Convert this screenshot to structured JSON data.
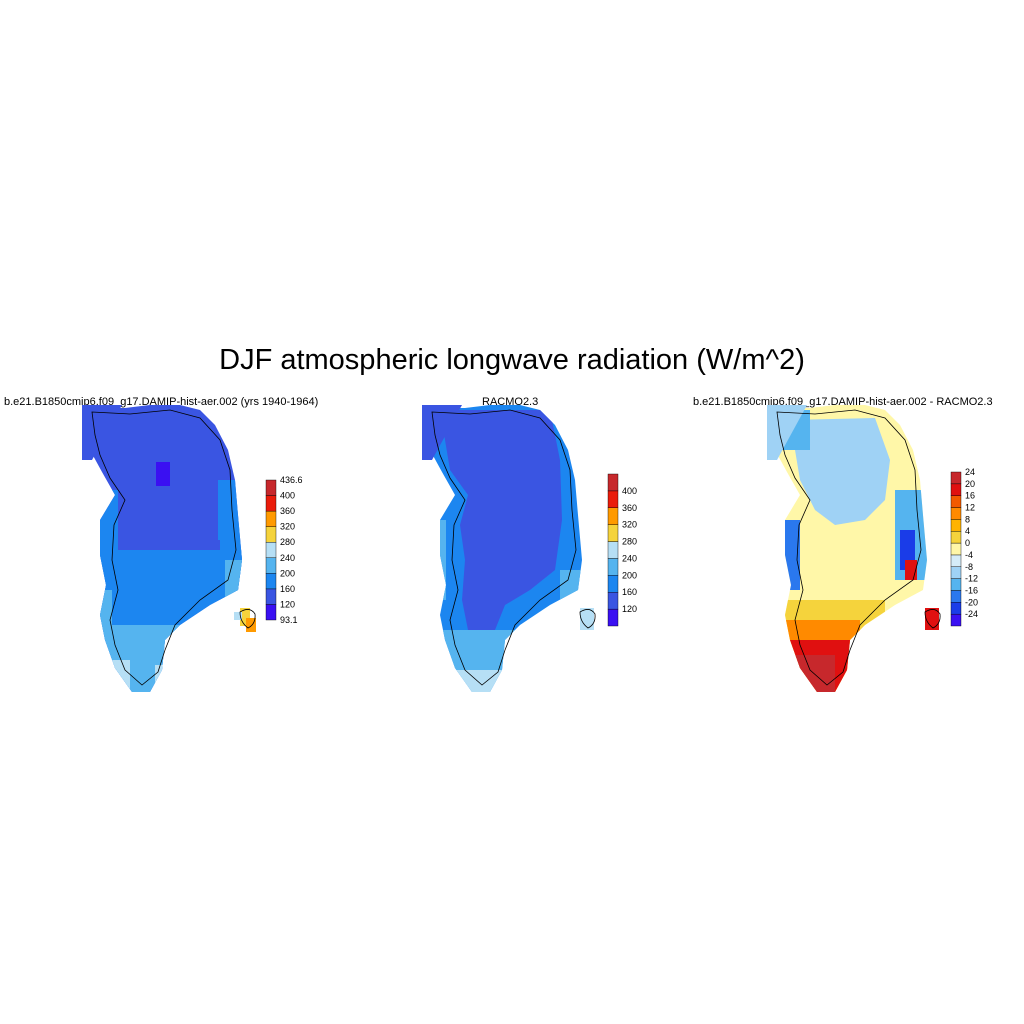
{
  "title": "DJF atmospheric longwave radiation (W/m^2)",
  "panels": [
    {
      "title": "b.e21.B1850cmip6.f09_g17.DAMIP-hist-aer.002 (yrs 1940-1964)",
      "colorbar": {
        "colors": [
          "#3a10f2",
          "#3a55e2",
          "#1c86f0",
          "#55b4ef",
          "#b6dff5",
          "#f5d33c",
          "#ff9a00",
          "#ea1c0b",
          "#c7282c"
        ],
        "labels": [
          "93.1",
          "120",
          "160",
          "200",
          "240",
          "280",
          "320",
          "360",
          "400",
          "436.6"
        ]
      }
    },
    {
      "title": "RACMO2.3",
      "colorbar": {
        "colors": [
          "#3a10f2",
          "#3a55e2",
          "#1c86f0",
          "#55b4ef",
          "#b6dff5",
          "#f5d33c",
          "#ff9a00",
          "#ea1c0b",
          "#c7282c"
        ],
        "labels": [
          "120",
          "160",
          "200",
          "240",
          "280",
          "320",
          "360",
          "400"
        ]
      }
    },
    {
      "title": "b.e21.B1850cmip6.f09_g17.DAMIP-hist-aer.002 - RACMO2.3",
      "colorbar": {
        "colors": [
          "#3a10f2",
          "#1a3ce8",
          "#2a78ee",
          "#55b4ef",
          "#9fd2f5",
          "#d5ecf8",
          "#fff7a8",
          "#f5d33c",
          "#ffb300",
          "#ff8a00",
          "#f25a00",
          "#e01010",
          "#c7282c"
        ],
        "labels": [
          "-24",
          "-20",
          "-16",
          "-12",
          "-8",
          "-4",
          "0",
          "4",
          "8",
          "12",
          "16",
          "20",
          "24"
        ]
      }
    }
  ]
}
